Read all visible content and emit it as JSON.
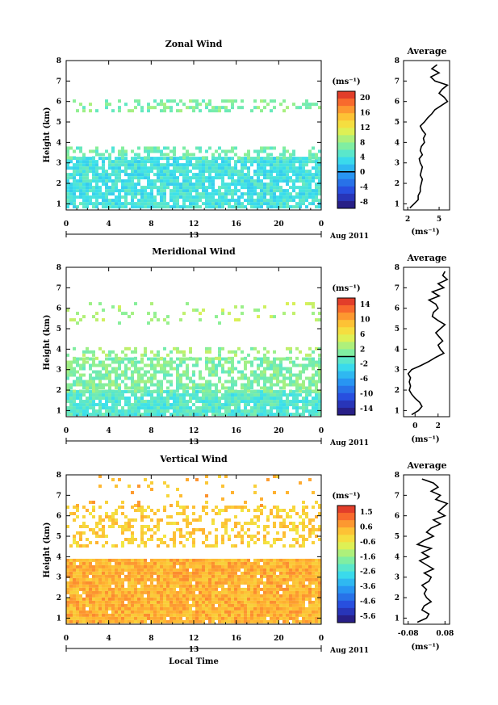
{
  "figure": {
    "date_label": "Aug 2011",
    "day_label": "13",
    "bottom_xlabel": "Local Time",
    "avg_unit": "(ms⁻¹)"
  },
  "chart_data": [
    {
      "type": "heatmap",
      "title": "Zonal Wind",
      "xlabel": "",
      "ylabel": "Height (km)",
      "x_ticks": [
        "0",
        "4",
        "8",
        "12",
        "16",
        "20",
        "0"
      ],
      "y_ticks": [
        "1",
        "2",
        "3",
        "4",
        "5",
        "6",
        "7",
        "8"
      ],
      "xlim": [
        0,
        24
      ],
      "ylim": [
        0.7,
        8
      ],
      "colorbar": {
        "unit": "(ms⁻¹)",
        "ticks": [
          "20",
          "16",
          "12",
          "8",
          "4",
          "0",
          "-4",
          "-8"
        ],
        "range": [
          -10,
          22
        ],
        "marked_value": 0
      },
      "field": {
        "base_value": 4.5,
        "layers": [
          {
            "ymin": 0.8,
            "ymax": 3.3,
            "fill": 0.85,
            "value": 4
          },
          {
            "ymin": 3.3,
            "ymax": 3.8,
            "fill": 0.45,
            "value": 6
          },
          {
            "ymin": 5.6,
            "ymax": 6.1,
            "fill": 0.35,
            "value": 7
          }
        ]
      },
      "average": {
        "title": "Average",
        "x_ticks": [
          "2",
          "5"
        ],
        "xlim": [
          1.6,
          6
        ],
        "heights": [
          0.8,
          1.0,
          1.2,
          1.4,
          1.6,
          1.8,
          2.0,
          2.2,
          2.4,
          2.6,
          2.8,
          3.0,
          3.2,
          3.4,
          3.6,
          3.8,
          4.0,
          4.2,
          4.4,
          4.6,
          4.8,
          5.0,
          5.2,
          5.4,
          5.6,
          5.8,
          6.0,
          6.2,
          6.4,
          6.6,
          6.8,
          7.0,
          7.2,
          7.4,
          7.6,
          7.8
        ],
        "values": [
          2.2,
          2.6,
          3.0,
          3.0,
          3.2,
          3.2,
          3.3,
          3.4,
          3.2,
          3.3,
          3.4,
          3.2,
          3.1,
          3.4,
          3.2,
          3.3,
          3.6,
          3.5,
          3.7,
          3.4,
          3.2,
          3.6,
          3.9,
          4.3,
          4.6,
          5.2,
          5.8,
          5.5,
          5.0,
          5.3,
          5.8,
          4.6,
          4.2,
          5.0,
          4.3,
          4.8
        ]
      }
    },
    {
      "type": "heatmap",
      "title": "Meridional Wind",
      "xlabel": "",
      "ylabel": "Height (km)",
      "x_ticks": [
        "0",
        "4",
        "8",
        "12",
        "16",
        "20",
        "0"
      ],
      "y_ticks": [
        "1",
        "2",
        "3",
        "4",
        "5",
        "6",
        "7",
        "8"
      ],
      "xlim": [
        0,
        24
      ],
      "ylim": [
        0.7,
        8
      ],
      "colorbar": {
        "unit": "(ms⁻¹)",
        "ticks": [
          "14",
          "10",
          "6",
          "2",
          "-2",
          "-6",
          "-10",
          "-14"
        ],
        "range": [
          -15,
          15
        ],
        "marked_value": 0
      },
      "field": {
        "base_value": 0,
        "layers": [
          {
            "ymin": 0.8,
            "ymax": 2.0,
            "fill": 0.9,
            "value": -1
          },
          {
            "ymin": 2.0,
            "ymax": 3.6,
            "fill": 0.65,
            "value": 1
          },
          {
            "ymin": 3.6,
            "ymax": 4.1,
            "fill": 0.25,
            "value": 2
          },
          {
            "ymin": 5.2,
            "ymax": 6.3,
            "fill": 0.12,
            "value": 3
          }
        ]
      },
      "average": {
        "title": "Average",
        "x_ticks": [
          "0",
          "2"
        ],
        "xlim": [
          -1,
          3
        ],
        "heights": [
          0.8,
          1.0,
          1.2,
          1.4,
          1.6,
          1.8,
          2.0,
          2.2,
          2.4,
          2.6,
          2.8,
          3.0,
          3.2,
          3.4,
          3.6,
          3.8,
          4.0,
          4.2,
          4.4,
          4.6,
          4.8,
          5.0,
          5.2,
          5.4,
          5.6,
          5.8,
          6.0,
          6.2,
          6.4,
          6.6,
          6.8,
          7.0,
          7.2,
          7.4,
          7.6,
          7.8
        ],
        "values": [
          -0.3,
          0.3,
          0.6,
          0.4,
          0.0,
          -0.3,
          -0.5,
          -0.4,
          -0.5,
          -0.4,
          -0.6,
          -0.3,
          0.5,
          1.2,
          1.8,
          2.5,
          2.2,
          2.0,
          2.4,
          2.1,
          1.8,
          2.2,
          2.6,
          2.0,
          1.5,
          1.6,
          2.0,
          1.8,
          1.2,
          2.1,
          1.5,
          2.5,
          2.0,
          2.8,
          2.4,
          2.6
        ]
      }
    },
    {
      "type": "heatmap",
      "title": "Vertical Wind",
      "xlabel": "Local Time",
      "ylabel": "Height (km)",
      "x_ticks": [
        "0",
        "4",
        "8",
        "12",
        "16",
        "20",
        "0"
      ],
      "y_ticks": [
        "1",
        "2",
        "3",
        "4",
        "5",
        "6",
        "7",
        "8"
      ],
      "xlim": [
        0,
        24
      ],
      "ylim": [
        0.7,
        8
      ],
      "colorbar": {
        "unit": "(ms⁻¹)",
        "ticks": [
          "1.5",
          "0.6",
          "-0.6",
          "-1.6",
          "-2.6",
          "-3.6",
          "-4.6",
          "-5.6"
        ],
        "range": [
          -6.2,
          2.0
        ],
        "marked_value": null
      },
      "field": {
        "base_value": 0.5,
        "layers": [
          {
            "ymin": 0.8,
            "ymax": 3.9,
            "fill": 0.97,
            "value": 0.4
          },
          {
            "ymin": 4.5,
            "ymax": 6.5,
            "fill": 0.35,
            "value": 0.0
          },
          {
            "ymin": 6.5,
            "ymax": 8.0,
            "fill": 0.06,
            "value": 0.3
          }
        ]
      },
      "average": {
        "title": "Average",
        "x_ticks": [
          "-0.08",
          "0.08"
        ],
        "xlim": [
          -0.1,
          0.1
        ],
        "heights": [
          0.8,
          1.0,
          1.2,
          1.4,
          1.6,
          1.8,
          2.0,
          2.2,
          2.4,
          2.6,
          2.8,
          3.0,
          3.2,
          3.4,
          3.6,
          3.8,
          4.0,
          4.2,
          4.4,
          4.6,
          4.8,
          5.0,
          5.2,
          5.4,
          5.6,
          5.8,
          6.0,
          6.2,
          6.4,
          6.6,
          6.8,
          7.0,
          7.2,
          7.4,
          7.6,
          7.8
        ],
        "values": [
          -0.04,
          0.0,
          0.01,
          -0.02,
          -0.01,
          0.02,
          0.0,
          -0.01,
          0.0,
          -0.02,
          0.01,
          0.02,
          -0.01,
          0.03,
          0.0,
          -0.03,
          0.01,
          -0.02,
          0.02,
          -0.04,
          -0.01,
          0.03,
          0.0,
          0.02,
          0.06,
          0.03,
          0.08,
          0.05,
          0.07,
          0.09,
          0.04,
          0.06,
          0.02,
          0.05,
          0.03,
          -0.02
        ]
      }
    }
  ]
}
